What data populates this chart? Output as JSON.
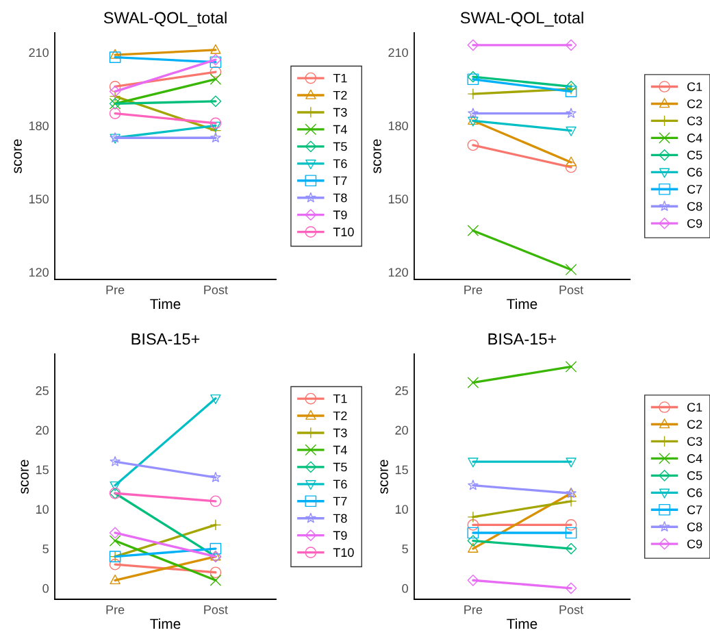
{
  "chart_data": [
    {
      "type": "line",
      "title": "SWAL-QOL_total",
      "xlabel": "Time",
      "ylabel": "score",
      "categories": [
        "Pre",
        "Post"
      ],
      "ylim": [
        117,
        218
      ],
      "yticks": [
        120,
        150,
        180,
        210
      ],
      "grid": false,
      "legend": "right",
      "series": [
        {
          "name": "T1",
          "color": "#F8766D",
          "marker": "circle",
          "values": [
            196,
            202
          ]
        },
        {
          "name": "T2",
          "color": "#D89000",
          "marker": "triangle",
          "values": [
            209,
            211
          ]
        },
        {
          "name": "T3",
          "color": "#A3A500",
          "marker": "plus",
          "values": [
            192,
            178
          ]
        },
        {
          "name": "T4",
          "color": "#39B600",
          "marker": "cross",
          "values": [
            189,
            199
          ]
        },
        {
          "name": "T5",
          "color": "#00BF7D",
          "marker": "diamond",
          "values": [
            189,
            190
          ]
        },
        {
          "name": "T6",
          "color": "#00BFC4",
          "marker": "triangle_down",
          "values": [
            175,
            180
          ]
        },
        {
          "name": "T7",
          "color": "#00B0F6",
          "marker": "square",
          "values": [
            208,
            206
          ]
        },
        {
          "name": "T8",
          "color": "#9590FF",
          "marker": "star",
          "values": [
            175,
            175
          ]
        },
        {
          "name": "T9",
          "color": "#E76BF3",
          "marker": "diamond",
          "values": [
            194,
            207
          ]
        },
        {
          "name": "T10",
          "color": "#FF62BC",
          "marker": "circle",
          "values": [
            185,
            181
          ]
        }
      ]
    },
    {
      "type": "line",
      "title": "SWAL-QOL_total",
      "xlabel": "Time",
      "ylabel": "score",
      "categories": [
        "Pre",
        "Post"
      ],
      "ylim": [
        117,
        218
      ],
      "yticks": [
        120,
        150,
        180,
        210
      ],
      "grid": false,
      "legend": "right",
      "series": [
        {
          "name": "C1",
          "color": "#F8766D",
          "marker": "circle",
          "values": [
            172,
            163
          ]
        },
        {
          "name": "C2",
          "color": "#D89000",
          "marker": "triangle",
          "values": [
            182,
            165
          ]
        },
        {
          "name": "C3",
          "color": "#A3A500",
          "marker": "plus",
          "values": [
            193,
            195
          ]
        },
        {
          "name": "C4",
          "color": "#39B600",
          "marker": "cross",
          "values": [
            137,
            121
          ]
        },
        {
          "name": "C5",
          "color": "#00BF7D",
          "marker": "diamond",
          "values": [
            200,
            196
          ]
        },
        {
          "name": "C6",
          "color": "#00BFC4",
          "marker": "triangle_down",
          "values": [
            182,
            178
          ]
        },
        {
          "name": "C7",
          "color": "#00B0F6",
          "marker": "square",
          "values": [
            199,
            194
          ]
        },
        {
          "name": "C8",
          "color": "#9590FF",
          "marker": "star",
          "values": [
            185,
            185
          ]
        },
        {
          "name": "C9",
          "color": "#E76BF3",
          "marker": "diamond",
          "values": [
            213,
            213
          ]
        }
      ]
    },
    {
      "type": "line",
      "title": "BISA-15+",
      "xlabel": "Time",
      "ylabel": "score",
      "categories": [
        "Pre",
        "Post"
      ],
      "ylim": [
        -1.4,
        29.6
      ],
      "yticks": [
        0,
        5,
        10,
        15,
        20,
        25
      ],
      "grid": false,
      "legend": "right",
      "series": [
        {
          "name": "T1",
          "color": "#F8766D",
          "marker": "circle",
          "values": [
            3,
            2
          ]
        },
        {
          "name": "T2",
          "color": "#D89000",
          "marker": "triangle",
          "values": [
            1,
            4
          ]
        },
        {
          "name": "T3",
          "color": "#A3A500",
          "marker": "plus",
          "values": [
            4,
            8
          ]
        },
        {
          "name": "T4",
          "color": "#39B600",
          "marker": "cross",
          "values": [
            6,
            1
          ]
        },
        {
          "name": "T5",
          "color": "#00BF7D",
          "marker": "diamond",
          "values": [
            12,
            4
          ]
        },
        {
          "name": "T6",
          "color": "#00BFC4",
          "marker": "triangle_down",
          "values": [
            13,
            24
          ]
        },
        {
          "name": "T7",
          "color": "#00B0F6",
          "marker": "square",
          "values": [
            4,
            5
          ]
        },
        {
          "name": "T8",
          "color": "#9590FF",
          "marker": "star",
          "values": [
            16,
            14
          ]
        },
        {
          "name": "T9",
          "color": "#E76BF3",
          "marker": "diamond",
          "values": [
            7,
            4
          ]
        },
        {
          "name": "T10",
          "color": "#FF62BC",
          "marker": "circle",
          "values": [
            12,
            11
          ]
        }
      ]
    },
    {
      "type": "line",
      "title": "BISA-15+",
      "xlabel": "Time",
      "ylabel": "score",
      "categories": [
        "Pre",
        "Post"
      ],
      "ylim": [
        -1.4,
        29.6
      ],
      "yticks": [
        0,
        5,
        10,
        15,
        20,
        25
      ],
      "grid": false,
      "legend": "right",
      "series": [
        {
          "name": "C1",
          "color": "#F8766D",
          "marker": "circle",
          "values": [
            8,
            8
          ]
        },
        {
          "name": "C2",
          "color": "#D89000",
          "marker": "triangle",
          "values": [
            5,
            12
          ]
        },
        {
          "name": "C3",
          "color": "#A3A500",
          "marker": "plus",
          "values": [
            9,
            11
          ]
        },
        {
          "name": "C4",
          "color": "#39B600",
          "marker": "cross",
          "values": [
            26,
            28
          ]
        },
        {
          "name": "C5",
          "color": "#00BF7D",
          "marker": "diamond",
          "values": [
            6,
            5
          ]
        },
        {
          "name": "C6",
          "color": "#00BFC4",
          "marker": "triangle_down",
          "values": [
            16,
            16
          ]
        },
        {
          "name": "C7",
          "color": "#00B0F6",
          "marker": "square",
          "values": [
            7,
            7
          ]
        },
        {
          "name": "C8",
          "color": "#9590FF",
          "marker": "star",
          "values": [
            13,
            12
          ]
        },
        {
          "name": "C9",
          "color": "#E76BF3",
          "marker": "diamond",
          "values": [
            1,
            0
          ]
        }
      ]
    }
  ]
}
